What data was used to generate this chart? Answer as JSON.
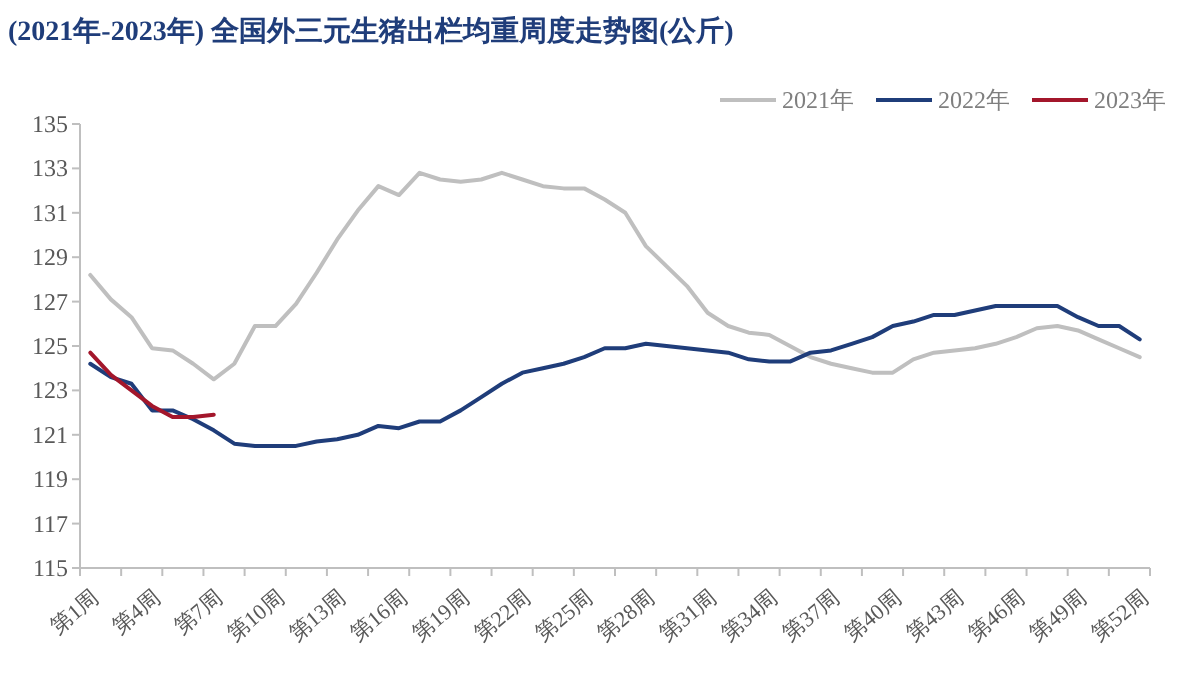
{
  "chart_data": {
    "type": "line",
    "title": "(2021年-2023年) 全国外三元生猪出栏均重周度走势图(公斤)",
    "categories": [
      "第1周",
      null,
      null,
      "第4周",
      null,
      null,
      "第7周",
      null,
      null,
      "第10周",
      null,
      null,
      "第13周",
      null,
      null,
      "第16周",
      null,
      null,
      "第19周",
      null,
      null,
      "第22周",
      null,
      null,
      "第25周",
      null,
      null,
      "第28周",
      null,
      null,
      "第31周",
      null,
      null,
      "第34周",
      null,
      null,
      "第37周",
      null,
      null,
      "第40周",
      null,
      null,
      "第43周",
      null,
      null,
      "第46周",
      null,
      null,
      "第49周",
      null,
      null,
      "第52周"
    ],
    "ylim": [
      115,
      135
    ],
    "yticks": [
      115,
      117,
      119,
      121,
      123,
      125,
      127,
      129,
      131,
      133,
      135
    ],
    "grid": false,
    "legend": "top right",
    "series": [
      {
        "name": "2021年",
        "color": "#bfbfbf",
        "values": [
          128.2,
          127.1,
          126.3,
          124.9,
          124.8,
          124.2,
          123.5,
          124.2,
          125.9,
          125.9,
          126.9,
          128.3,
          129.8,
          131.1,
          132.2,
          131.8,
          132.8,
          132.5,
          132.4,
          132.5,
          132.8,
          132.5,
          132.2,
          132.1,
          132.1,
          131.6,
          131.0,
          129.5,
          128.6,
          127.7,
          126.5,
          125.9,
          125.6,
          125.5,
          125.0,
          124.5,
          124.2,
          124.0,
          123.8,
          123.8,
          124.4,
          124.7,
          124.8,
          124.9,
          125.1,
          125.4,
          125.8,
          125.9,
          125.7,
          125.3,
          124.9,
          124.5
        ]
      },
      {
        "name": "2022年",
        "color": "#1f3d7a",
        "values": [
          124.2,
          123.6,
          123.3,
          122.1,
          122.1,
          121.7,
          121.2,
          120.6,
          120.5,
          120.5,
          120.5,
          120.7,
          120.8,
          121.0,
          121.4,
          121.3,
          121.6,
          121.6,
          122.1,
          122.7,
          123.3,
          123.8,
          124.0,
          124.2,
          124.5,
          124.9,
          124.9,
          125.1,
          125.0,
          124.9,
          124.8,
          124.7,
          124.4,
          124.3,
          124.3,
          124.7,
          124.8,
          125.1,
          125.4,
          125.9,
          126.1,
          126.4,
          126.4,
          126.6,
          126.8,
          126.8,
          126.8,
          126.8,
          126.3,
          125.9,
          125.9,
          125.3
        ]
      },
      {
        "name": "2023年",
        "color": "#a3162b",
        "values": [
          124.7,
          123.7,
          123.0,
          122.3,
          121.8,
          121.8,
          121.9,
          null,
          null,
          null,
          null,
          null,
          null,
          null,
          null,
          null,
          null,
          null,
          null,
          null,
          null,
          null,
          null,
          null,
          null,
          null,
          null,
          null,
          null,
          null,
          null,
          null,
          null,
          null,
          null,
          null,
          null,
          null,
          null,
          null,
          null,
          null,
          null,
          null,
          null,
          null,
          null,
          null,
          null,
          null,
          null,
          null
        ]
      }
    ]
  }
}
